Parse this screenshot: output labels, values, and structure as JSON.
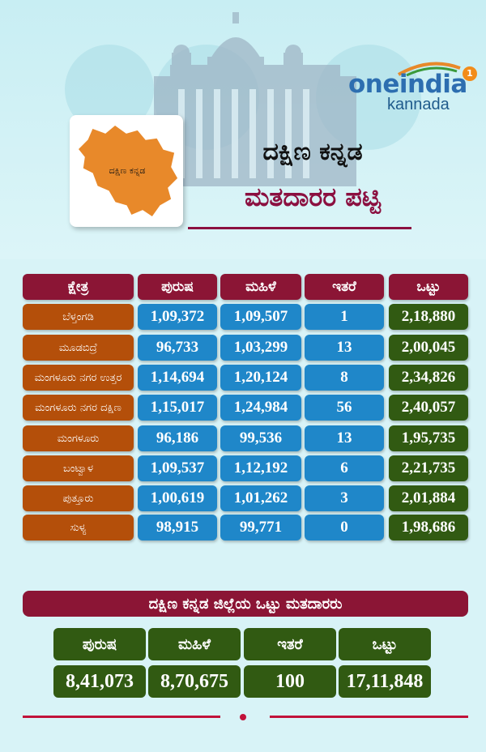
{
  "brand": {
    "logo_main": "oneindia",
    "logo_sub": "kannada",
    "logo_badge": "1"
  },
  "map": {
    "label": "ದಕ್ಷಿಣ ಕನ್ನಡ",
    "fill_color": "#e8892a"
  },
  "title": {
    "line1": "ದಕ್ಷಿಣ ಕನ್ನಡ",
    "line2": "ಮತದಾರರ ಪಟ್ಟಿ"
  },
  "table": {
    "headers": [
      "ಕ್ಷೇತ್ರ",
      "ಪುರುಷ",
      "ಮಹಿಳೆ",
      "ಇತರೆ",
      "ಒಟ್ಟು"
    ],
    "rows": [
      [
        "ಬೆಳ್ತಂಗಡಿ",
        "1,09,372",
        "1,09,507",
        "1",
        "2,18,880"
      ],
      [
        "ಮೂಡಬಿದ್ರೆ",
        "96,733",
        "1,03,299",
        "13",
        "2,00,045"
      ],
      [
        "ಮಂಗಳೂರು ನಗರ ಉತ್ತರ",
        "1,14,694",
        "1,20,124",
        "8",
        "2,34,826"
      ],
      [
        "ಮಂಗಳೂರು ನಗರ ದಕ್ಷಿಣ",
        "1,15,017",
        "1,24,984",
        "56",
        "2,40,057"
      ],
      [
        "ಮಂಗಳೂರು",
        "96,186",
        "99,536",
        "13",
        "1,95,735"
      ],
      [
        "ಬಂಟ್ವಾಳ",
        "1,09,537",
        "1,12,192",
        "6",
        "2,21,735"
      ],
      [
        "ಪುತ್ತೂರು",
        "1,00,619",
        "1,01,262",
        "3",
        "2,01,884"
      ],
      [
        "ಸುಳ್ಯ",
        "98,915",
        "99,771",
        "0",
        "1,98,686"
      ]
    ]
  },
  "summary": {
    "banner": "ದಕ್ಷಿಣ ಕನ್ನಡ ಜಿಲ್ಲೆಯ ಒಟ್ಟು ಮತದಾರರು",
    "headers": [
      "ಪುರುಷ",
      "ಮಹಿಳೆ",
      "ಇತರೆ",
      "ಒಟ್ಟು"
    ],
    "values": [
      "8,41,073",
      "8,70,675",
      "100",
      "17,11,848"
    ]
  },
  "colors": {
    "header_maroon": "#8b1535",
    "constituency_orange": "#b44f0a",
    "value_blue": "#1f87c9",
    "total_green": "#315a12",
    "title_maroon": "#8b1040"
  }
}
